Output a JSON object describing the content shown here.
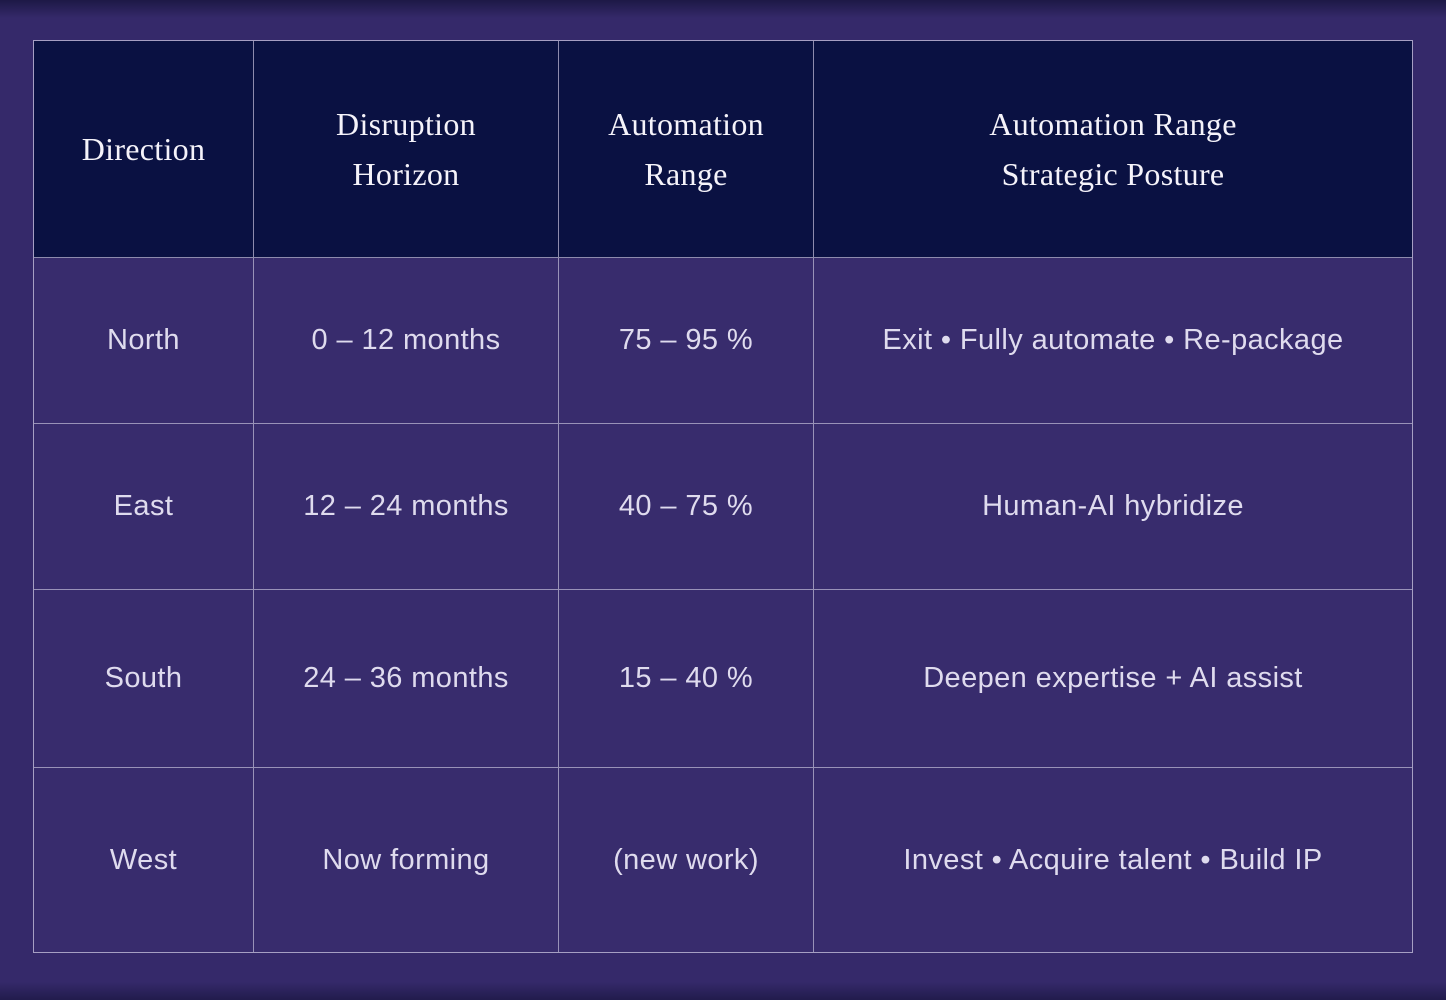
{
  "palette": {
    "page_background": "#35296a",
    "header_background": "#0a1142",
    "cell_background": "#382c6d",
    "grid_line": "#bab4d2",
    "header_text": "#f5f3fa",
    "body_text": "#dfdbee"
  },
  "table": {
    "columns": [
      {
        "line1": "Direction",
        "line2": ""
      },
      {
        "line1": "Disruption",
        "line2": "Horizon"
      },
      {
        "line1": "Automation",
        "line2": "Range"
      },
      {
        "line1": "Automation Range",
        "line2": "Strategic Posture"
      }
    ],
    "rows": [
      {
        "direction": "North",
        "horizon": "0 – 12 months",
        "range": "75 – 95 %",
        "posture": "Exit • Fully automate • Re-package"
      },
      {
        "direction": "East",
        "horizon": "12 – 24 months",
        "range": "40 – 75 %",
        "posture": "Human-AI hybridize"
      },
      {
        "direction": "South",
        "horizon": "24 – 36 months",
        "range": "15 – 40 %",
        "posture": "Deepen expertise + AI assist"
      },
      {
        "direction": "West",
        "horizon": "Now forming",
        "range": "(new work)",
        "posture": "Invest • Acquire talent • Build IP"
      }
    ]
  },
  "chart_data": {
    "type": "table",
    "title": "",
    "columns": [
      "Direction",
      "Disruption Horizon",
      "Automation Range",
      "Automation Range Strategic Posture"
    ],
    "rows": [
      [
        "North",
        "0 – 12 months",
        "75 – 95 %",
        "Exit • Fully automate • Re-package"
      ],
      [
        "East",
        "12 – 24 months",
        "40 – 75 %",
        "Human-AI hybridize"
      ],
      [
        "South",
        "24 – 36 months",
        "15 – 40 %",
        "Deepen expertise + AI assist"
      ],
      [
        "West",
        "Now forming",
        "(new work)",
        "Invest • Acquire talent • Build IP"
      ]
    ]
  }
}
